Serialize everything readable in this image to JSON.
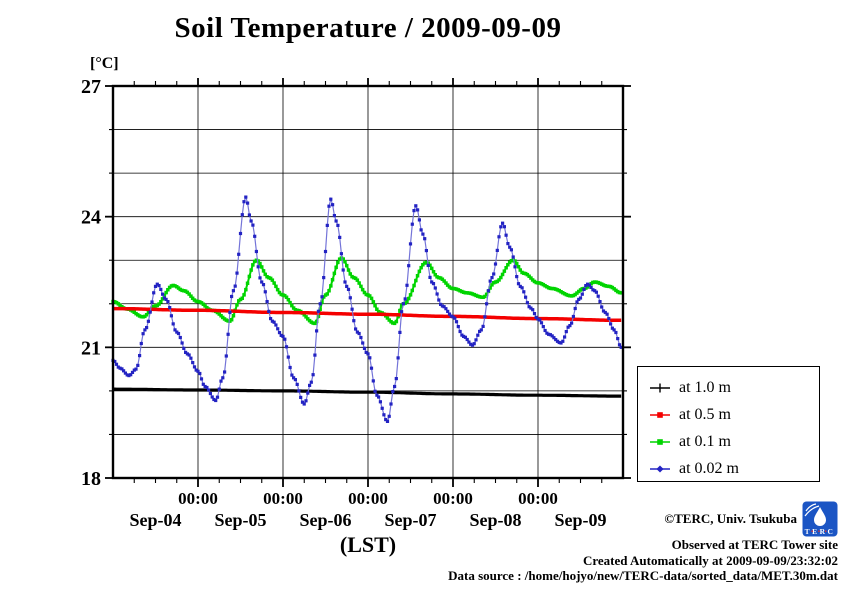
{
  "title": "Soil Temperature / 2009-09-09",
  "y_axis": {
    "unit_label": "[°C]",
    "ticks": [
      27,
      24,
      21,
      18
    ],
    "min": 18,
    "max": 27,
    "minor_step_deg": 1
  },
  "x_axis": {
    "midnight_label": "00:00",
    "day_labels": [
      "Sep-04",
      "Sep-05",
      "Sep-06",
      "Sep-07",
      "Sep-08",
      "Sep-09"
    ],
    "axis_label": "(LST)",
    "minor_tick_hours": 6,
    "major_tick_hours": 24
  },
  "legend": {
    "items": [
      {
        "label": "at 1.0 m",
        "color": "#000000"
      },
      {
        "label": "at 0.5 m",
        "color": "#f40000"
      },
      {
        "label": "at 0.1 m",
        "color": "#00d400"
      },
      {
        "label": "at 0.02 m",
        "color": "#2323c3"
      }
    ]
  },
  "annotations": {
    "copyright": "©TERC, Univ. Tsukuba",
    "observed": "Observed at TERC Tower site",
    "created": "Created Automatically at 2009-09-09/23:32:02",
    "source": "Data source : /home/hojyo/new/TERC-data/sorted_data/MET.30m.dat",
    "logo_text": "TERC"
  },
  "chart_data": {
    "type": "line",
    "title": "Soil Temperature / 2009-09-09",
    "xlabel": "(LST)",
    "ylabel": "[°C]",
    "ylim": [
      18,
      27
    ],
    "xlim_hours": [
      0,
      144
    ],
    "x_unit": "hours since 2009-09-04 00:00 LST (keypoints of 30-min observations)",
    "grid": "horizontal every 1°C, vertical at each midnight, minor ticks every 6 h",
    "legend_position": "outside right, lower",
    "series": [
      {
        "name": "at 1.0 m",
        "depth_m": 1.0,
        "color": "#000000",
        "line_color": "#000000",
        "line_width": 3.2,
        "marker": "none",
        "marker_size": 0,
        "points": [
          [
            0,
            20.04
          ],
          [
            24,
            20.02
          ],
          [
            48,
            20.0
          ],
          [
            72,
            19.97
          ],
          [
            96,
            19.93
          ],
          [
            120,
            19.9
          ],
          [
            143.5,
            19.88
          ]
        ]
      },
      {
        "name": "at 0.5 m",
        "depth_m": 0.5,
        "color": "#f40000",
        "line_color": "#f40000",
        "line_width": 3.5,
        "marker": "none",
        "marker_size": 0,
        "points": [
          [
            0,
            21.89
          ],
          [
            24,
            21.85
          ],
          [
            48,
            21.8
          ],
          [
            72,
            21.76
          ],
          [
            96,
            21.71
          ],
          [
            120,
            21.66
          ],
          [
            143.5,
            21.62
          ]
        ]
      },
      {
        "name": "at 0.1 m",
        "depth_m": 0.1,
        "color": "#00d400",
        "line_color": "#00d400",
        "line_width": 2.0,
        "marker": "square",
        "marker_size": 3.5,
        "points": [
          [
            0,
            22.05
          ],
          [
            4,
            21.88
          ],
          [
            8.5,
            21.7
          ],
          [
            12,
            21.95
          ],
          [
            17,
            22.42
          ],
          [
            20,
            22.3
          ],
          [
            24,
            22.05
          ],
          [
            28,
            21.85
          ],
          [
            33,
            21.6
          ],
          [
            36,
            22.1
          ],
          [
            40.5,
            23.0
          ],
          [
            44,
            22.6
          ],
          [
            48,
            22.2
          ],
          [
            52,
            21.85
          ],
          [
            57,
            21.55
          ],
          [
            60,
            22.2
          ],
          [
            64.5,
            23.05
          ],
          [
            68,
            22.6
          ],
          [
            72,
            22.2
          ],
          [
            75.5,
            21.8
          ],
          [
            79.5,
            21.55
          ],
          [
            82,
            22.0
          ],
          [
            88.5,
            22.95
          ],
          [
            92,
            22.6
          ],
          [
            96,
            22.35
          ],
          [
            100,
            22.25
          ],
          [
            104.5,
            22.15
          ],
          [
            108,
            22.5
          ],
          [
            113,
            23.0
          ],
          [
            116,
            22.7
          ],
          [
            120,
            22.48
          ],
          [
            124,
            22.35
          ],
          [
            129.5,
            22.18
          ],
          [
            133,
            22.35
          ],
          [
            136,
            22.5
          ],
          [
            140,
            22.4
          ],
          [
            143.5,
            22.25
          ]
        ]
      },
      {
        "name": "at 0.02 m",
        "depth_m": 0.02,
        "color": "#2323c3",
        "line_color": "#7474d8",
        "line_width": 1.2,
        "marker": "square",
        "marker_size": 3.2,
        "points": [
          [
            0,
            20.7
          ],
          [
            2,
            20.52
          ],
          [
            4.5,
            20.35
          ],
          [
            6.5,
            20.5
          ],
          [
            9,
            21.4
          ],
          [
            12.5,
            22.45
          ],
          [
            15,
            22.1
          ],
          [
            18,
            21.35
          ],
          [
            21,
            20.85
          ],
          [
            24,
            20.45
          ],
          [
            26,
            20.1
          ],
          [
            29,
            19.78
          ],
          [
            31,
            20.3
          ],
          [
            34,
            22.3
          ],
          [
            37.5,
            24.45
          ],
          [
            39,
            23.9
          ],
          [
            42,
            22.5
          ],
          [
            45,
            21.6
          ],
          [
            48,
            21.25
          ],
          [
            51,
            20.3
          ],
          [
            54,
            19.7
          ],
          [
            56,
            20.2
          ],
          [
            58.5,
            22.0
          ],
          [
            61.5,
            24.4
          ],
          [
            63,
            23.9
          ],
          [
            66,
            22.4
          ],
          [
            69,
            21.35
          ],
          [
            72,
            20.85
          ],
          [
            74.5,
            19.9
          ],
          [
            77.5,
            19.3
          ],
          [
            79.5,
            20.1
          ],
          [
            82,
            22.0
          ],
          [
            85.5,
            24.25
          ],
          [
            87.5,
            23.6
          ],
          [
            90,
            22.5
          ],
          [
            93,
            21.95
          ],
          [
            96,
            21.7
          ],
          [
            99,
            21.25
          ],
          [
            101.5,
            21.05
          ],
          [
            104,
            21.4
          ],
          [
            107,
            22.6
          ],
          [
            110,
            23.85
          ],
          [
            112,
            23.3
          ],
          [
            115,
            22.4
          ],
          [
            118,
            21.9
          ],
          [
            120,
            21.65
          ],
          [
            123,
            21.3
          ],
          [
            126.5,
            21.1
          ],
          [
            129,
            21.5
          ],
          [
            131.5,
            22.1
          ],
          [
            134,
            22.45
          ],
          [
            136,
            22.3
          ],
          [
            139,
            21.8
          ],
          [
            141.5,
            21.4
          ],
          [
            143.5,
            21.0
          ]
        ]
      }
    ]
  }
}
